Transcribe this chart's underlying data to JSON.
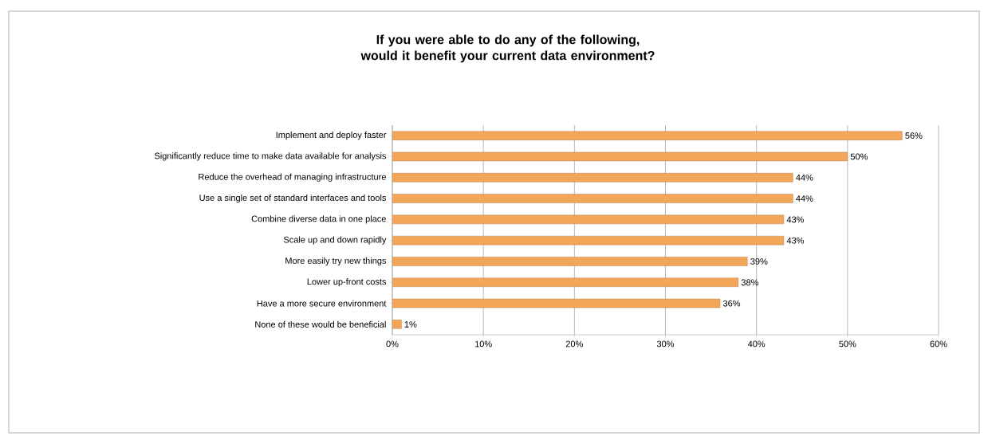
{
  "chart_data": {
    "type": "bar",
    "orientation": "horizontal",
    "title": "If you were able to do any of the following, would it benefit your current data environment?",
    "categories": [
      "Implement and deploy faster",
      "Significantly reduce time to make data available for analysis",
      "Reduce the overhead of managing infrastructure",
      "Use a single set of standard interfaces and tools",
      "Combine diverse data in one place",
      "Scale up and down rapidly",
      "More easily try new things",
      "Lower up-front costs",
      "Have a more secure environment",
      "None of these would be beneficial"
    ],
    "values": [
      56,
      50,
      44,
      44,
      43,
      43,
      39,
      38,
      36,
      1
    ],
    "value_labels": [
      "56%",
      "50%",
      "44%",
      "44%",
      "43%",
      "43%",
      "39%",
      "38%",
      "36%",
      "1%"
    ],
    "color": "#f2a65a",
    "xlim": [
      0,
      60
    ],
    "xticks": [
      {
        "value": 0,
        "label": "0%"
      },
      {
        "value": 10,
        "label": "10%"
      },
      {
        "value": 20,
        "label": "20%"
      },
      {
        "value": 30,
        "label": "30%"
      },
      {
        "value": 40,
        "label": "40%"
      },
      {
        "value": 50,
        "label": "50%"
      },
      {
        "value": 60,
        "label": "60%"
      }
    ],
    "grid": "x"
  }
}
